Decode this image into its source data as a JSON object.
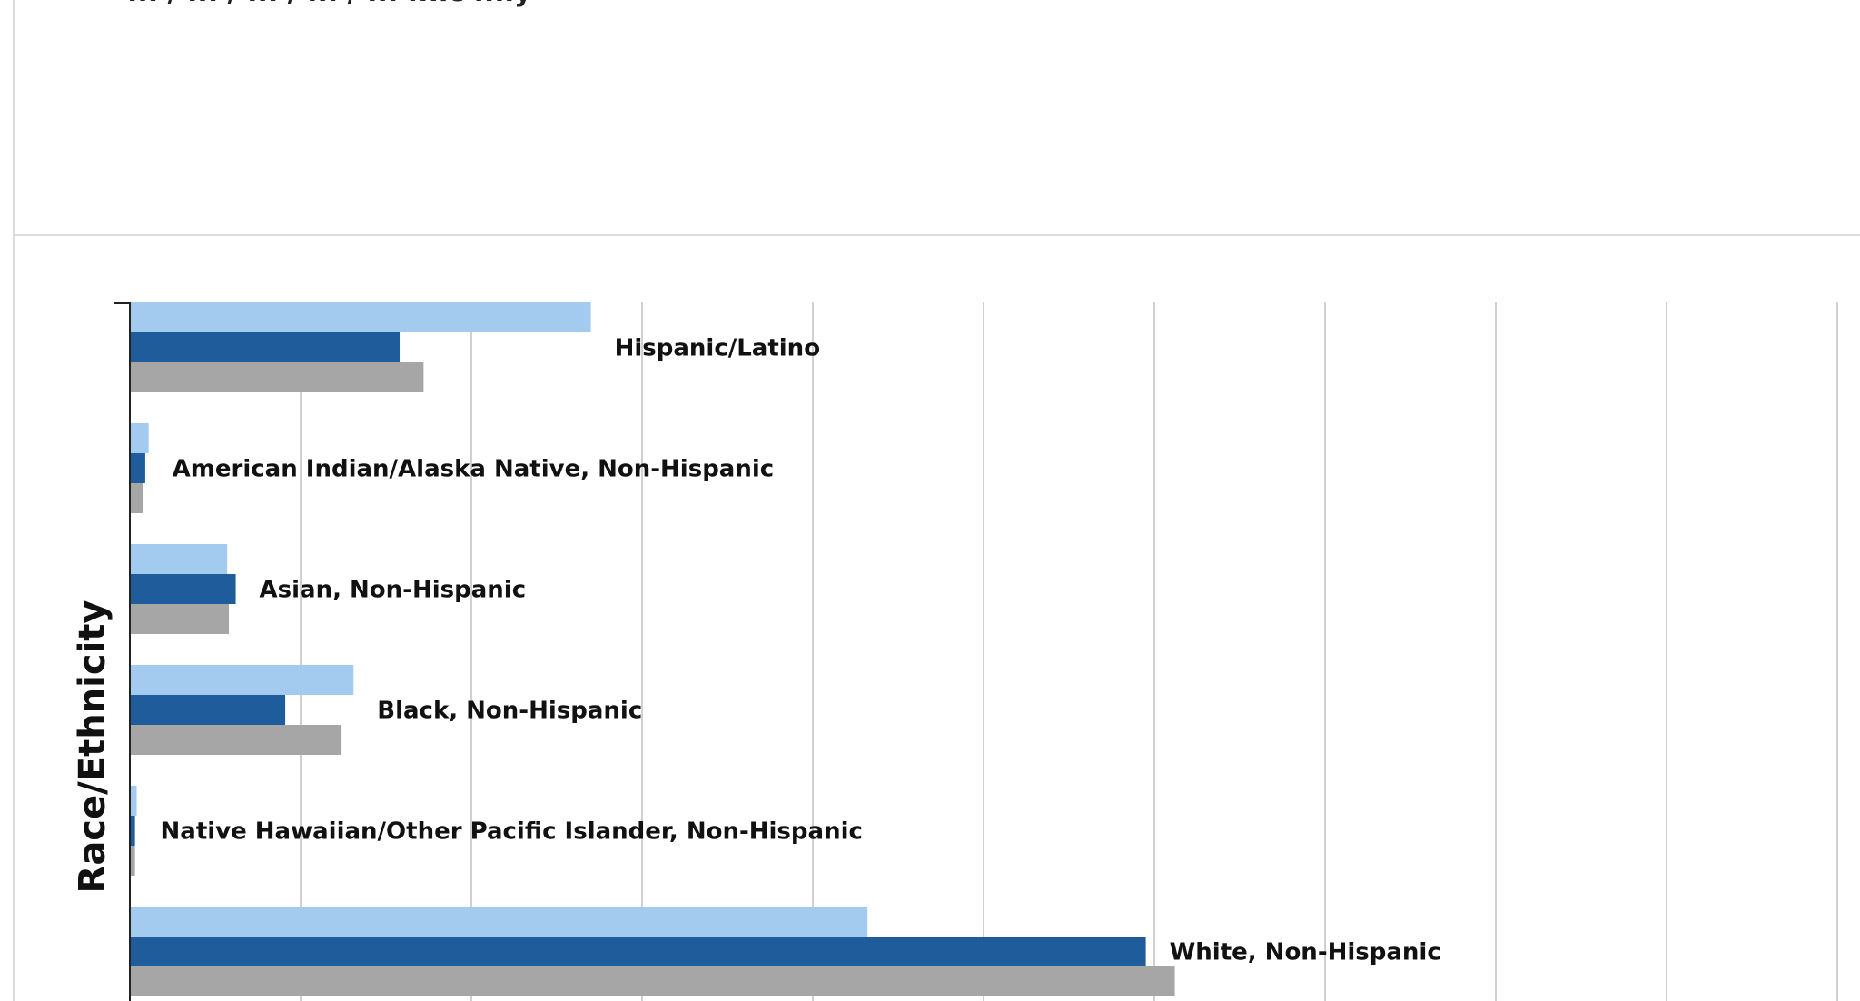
{
  "page": {
    "cut_title": "... / ... / ... / ...  / ... ...ic ...ly"
  },
  "chart_data": {
    "type": "bar",
    "orientation": "horizontal",
    "ylabel": "Race/Ethnicity",
    "categories": [
      "Hispanic/Latino",
      "American Indian/Alaska Native, Non-Hispanic",
      "Asian, Non-Hispanic",
      "Black, Non-Hispanic",
      "Native Hawaiian/Other Pacific Islander, Non-Hispanic",
      "White, Non-Hispanic"
    ],
    "series": [
      {
        "color": "#a3cbef",
        "values": [
          27.0,
          1.1,
          5.7,
          13.1,
          0.4,
          43.2
        ]
      },
      {
        "color": "#1f5c9c",
        "values": [
          15.8,
          0.9,
          6.2,
          9.1,
          0.3,
          59.5
        ]
      },
      {
        "color": "#a6a6a6",
        "values": [
          17.2,
          0.8,
          5.8,
          12.4,
          0.3,
          61.2
        ]
      }
    ],
    "xlim": [
      0,
      100
    ],
    "grid": true
  }
}
